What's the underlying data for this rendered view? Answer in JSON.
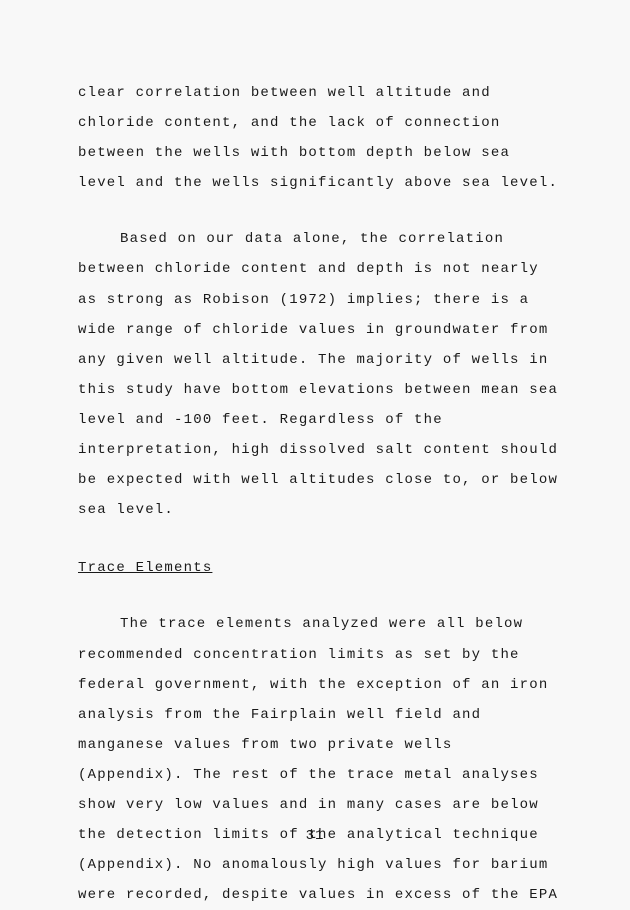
{
  "page": {
    "bgColor": "#f8f8f8",
    "textColor": "#1a1a1a",
    "fontFamily": "Courier New, Courier, monospace",
    "fontSize": 14,
    "letterSpacing": 1.2,
    "lineHeight": 2.15
  },
  "paragraphs": {
    "p1": "clear correlation between well altitude and chloride content, and the lack of connection between the wells with bottom depth below sea level and the wells significantly above sea level.",
    "p2": "Based on our data alone, the correlation between chloride content and depth is not nearly as strong as Robison (1972) implies; there is a wide range of chloride values in groundwater from any given well altitude.  The majority of wells in this study have bottom elevations between mean sea level and -100 feet.  Regardless of the interpretation, high dissolved salt content should be expected with well altitudes close to, or below sea level.",
    "heading": "Trace Elements",
    "p3": "The trace elements analyzed were all below recommended concentration limits as set by the federal government, with the exception of an iron analysis from the Fairplain well field and manganese values from two private wells (Appendix).  The rest of the trace metal analyses show very low values and in many cases are below the detection limits of the analytical technique (Appendix).  No anomalously high values for barium were recorded, despite values in excess of the EPA"
  },
  "pageNumber": "31"
}
